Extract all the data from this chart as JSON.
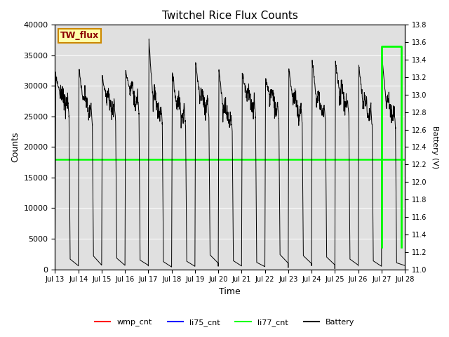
{
  "title": "Twitchel Rice Flux Counts",
  "xlabel": "Time",
  "ylabel_left": "Counts",
  "ylabel_right": "Battery (V)",
  "ylim_left": [
    0,
    40000
  ],
  "ylim_right": [
    11.0,
    13.8
  ],
  "yticks_left": [
    0,
    5000,
    10000,
    15000,
    20000,
    25000,
    30000,
    35000,
    40000
  ],
  "yticks_right": [
    11.0,
    11.2,
    11.4,
    11.6,
    11.8,
    12.0,
    12.2,
    12.4,
    12.6,
    12.8,
    13.0,
    13.2,
    13.4,
    13.6,
    13.8
  ],
  "xtick_labels": [
    "Jul 13",
    "Jul 14",
    "Jul 15",
    "Jul 16",
    "Jul 17",
    "Jul 18",
    "Jul 19",
    "Jul 20",
    "Jul 21",
    "Jul 22",
    "Jul 23",
    "Jul 24",
    "Jul 25",
    "Jul 26",
    "Jul 27",
    "Jul 28"
  ],
  "li77_cnt_value": 18000,
  "li77_cnt_color": "#00ff00",
  "battery_color": "#000000",
  "wmp_cnt_color": "#ff0000",
  "li75_cnt_color": "#0000ff",
  "plot_bg_color": "#e0e0e0",
  "annotation_text": "TW_flux",
  "annotation_box_color": "#ffffaa",
  "annotation_border_color": "#cc8800",
  "n_cycles": 15,
  "peak_high": 33000,
  "peak_spike": 37500,
  "trough_low": 1500,
  "mid_noisy": 27000,
  "batt_high": 13.2,
  "batt_low": 11.2,
  "batt_spike": 13.55,
  "green_jump_day": 14.0
}
